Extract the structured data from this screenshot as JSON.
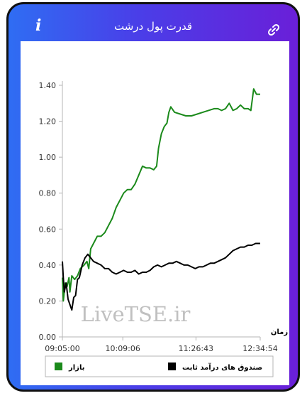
{
  "header": {
    "title": "قدرت پول درشت",
    "info_icon": "i",
    "link_icon": "link-icon"
  },
  "watermark": "LiveTSE.ir",
  "chart_data": {
    "type": "line",
    "title": "",
    "xlabel": "زمان",
    "ylabel": "",
    "ylim": [
      0,
      1.4
    ],
    "yticks": [
      "0.00",
      "0.20",
      "0.40",
      "0.60",
      "0.80",
      "1.00",
      "1.20",
      "1.40"
    ],
    "xticks": [
      "09:05:00",
      "10:09:06",
      "11:26:43",
      "12:34:54"
    ],
    "xlim_minutes": [
      545,
      754.9
    ],
    "grid": false,
    "legend_placement": "bottom",
    "series": [
      {
        "name": "بازار",
        "color": "#1b8a1b",
        "points": [
          [
            545,
            0.33
          ],
          [
            546,
            0.2
          ],
          [
            548,
            0.3
          ],
          [
            550,
            0.28
          ],
          [
            552,
            0.33
          ],
          [
            553,
            0.25
          ],
          [
            555,
            0.34
          ],
          [
            558,
            0.32
          ],
          [
            561,
            0.34
          ],
          [
            564,
            0.38
          ],
          [
            568,
            0.4
          ],
          [
            571,
            0.42
          ],
          [
            573,
            0.38
          ],
          [
            575,
            0.49
          ],
          [
            578,
            0.52
          ],
          [
            582,
            0.56
          ],
          [
            586,
            0.56
          ],
          [
            590,
            0.58
          ],
          [
            594,
            0.62
          ],
          [
            598,
            0.66
          ],
          [
            602,
            0.72
          ],
          [
            606,
            0.76
          ],
          [
            610,
            0.8
          ],
          [
            614,
            0.82
          ],
          [
            618,
            0.82
          ],
          [
            622,
            0.85
          ],
          [
            626,
            0.9
          ],
          [
            630,
            0.95
          ],
          [
            634,
            0.94
          ],
          [
            638,
            0.94
          ],
          [
            642,
            0.93
          ],
          [
            645,
            0.95
          ],
          [
            647,
            1.05
          ],
          [
            650,
            1.13
          ],
          [
            653,
            1.17
          ],
          [
            656,
            1.19
          ],
          [
            658,
            1.25
          ],
          [
            660,
            1.28
          ],
          [
            664,
            1.25
          ],
          [
            670,
            1.24
          ],
          [
            676,
            1.23
          ],
          [
            682,
            1.23
          ],
          [
            688,
            1.24
          ],
          [
            694,
            1.25
          ],
          [
            700,
            1.26
          ],
          [
            706,
            1.27
          ],
          [
            710,
            1.27
          ],
          [
            714,
            1.26
          ],
          [
            718,
            1.27
          ],
          [
            722,
            1.3
          ],
          [
            726,
            1.26
          ],
          [
            730,
            1.27
          ],
          [
            734,
            1.29
          ],
          [
            738,
            1.27
          ],
          [
            742,
            1.27
          ],
          [
            745,
            1.26
          ],
          [
            748,
            1.38
          ],
          [
            751,
            1.35
          ],
          [
            754.9,
            1.35
          ]
        ]
      },
      {
        "name": "صندوق های درآمد ثابت",
        "color": "#000000",
        "points": [
          [
            545,
            0.42
          ],
          [
            546,
            0.33
          ],
          [
            547,
            0.25
          ],
          [
            549,
            0.3
          ],
          [
            551,
            0.21
          ],
          [
            553,
            0.18
          ],
          [
            555,
            0.15
          ],
          [
            557,
            0.22
          ],
          [
            559,
            0.23
          ],
          [
            561,
            0.32
          ],
          [
            563,
            0.33
          ],
          [
            566,
            0.4
          ],
          [
            569,
            0.44
          ],
          [
            572,
            0.46
          ],
          [
            575,
            0.44
          ],
          [
            578,
            0.42
          ],
          [
            582,
            0.41
          ],
          [
            586,
            0.4
          ],
          [
            590,
            0.38
          ],
          [
            594,
            0.38
          ],
          [
            598,
            0.36
          ],
          [
            602,
            0.35
          ],
          [
            606,
            0.36
          ],
          [
            610,
            0.37
          ],
          [
            614,
            0.36
          ],
          [
            618,
            0.36
          ],
          [
            622,
            0.37
          ],
          [
            626,
            0.35
          ],
          [
            630,
            0.36
          ],
          [
            634,
            0.36
          ],
          [
            638,
            0.37
          ],
          [
            642,
            0.39
          ],
          [
            646,
            0.4
          ],
          [
            650,
            0.39
          ],
          [
            654,
            0.4
          ],
          [
            658,
            0.41
          ],
          [
            662,
            0.41
          ],
          [
            666,
            0.42
          ],
          [
            670,
            0.41
          ],
          [
            674,
            0.4
          ],
          [
            678,
            0.4
          ],
          [
            682,
            0.39
          ],
          [
            686,
            0.38
          ],
          [
            690,
            0.39
          ],
          [
            694,
            0.39
          ],
          [
            698,
            0.4
          ],
          [
            702,
            0.41
          ],
          [
            706,
            0.41
          ],
          [
            710,
            0.42
          ],
          [
            714,
            0.43
          ],
          [
            718,
            0.44
          ],
          [
            722,
            0.46
          ],
          [
            726,
            0.48
          ],
          [
            730,
            0.49
          ],
          [
            734,
            0.5
          ],
          [
            738,
            0.5
          ],
          [
            742,
            0.51
          ],
          [
            746,
            0.51
          ],
          [
            750,
            0.52
          ],
          [
            754.9,
            0.52
          ]
        ]
      }
    ]
  }
}
